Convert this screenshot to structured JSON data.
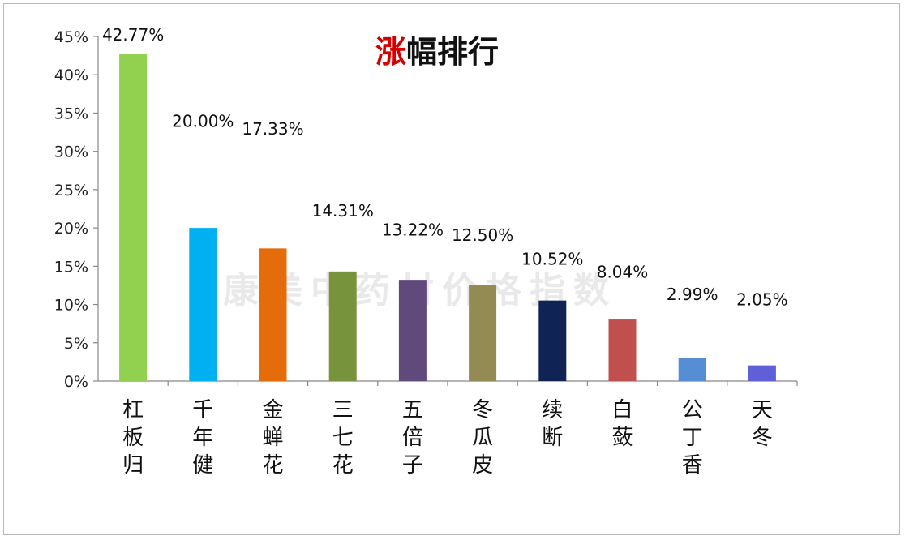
{
  "chart_data": {
    "type": "bar",
    "title_highlight": "涨",
    "title_rest": "幅排行",
    "categories": [
      "杠板归",
      "千年健",
      "金蝉花",
      "三七花",
      "五倍子",
      "冬瓜皮",
      "续断",
      "白蔹",
      "公丁香",
      "天冬"
    ],
    "values": [
      42.77,
      20.0,
      17.33,
      14.31,
      13.22,
      12.5,
      10.52,
      8.04,
      2.99,
      2.05
    ],
    "data_labels": [
      "42.77%",
      "20.00%",
      "17.33%",
      "14.31%",
      "13.22%",
      "12.50%",
      "10.52%",
      "8.04%",
      "2.99%",
      "2.05%"
    ],
    "bar_colors": [
      "#92d050",
      "#00b0f0",
      "#e46c0a",
      "#77933c",
      "#604a7b",
      "#948a54",
      "#0f2454",
      "#c0504d",
      "#558ed5",
      "#5f5fd7"
    ],
    "yticks": [
      "0%",
      "5%",
      "10%",
      "15%",
      "20%",
      "25%",
      "30%",
      "35%",
      "40%",
      "45%"
    ],
    "ylim": [
      0,
      45
    ],
    "xlabel": "",
    "ylabel": "",
    "grid": false,
    "legend": "none",
    "title_color_highlight": "#d40000",
    "title_color_rest": "#111111",
    "watermark": "康美中药材价格指数"
  }
}
